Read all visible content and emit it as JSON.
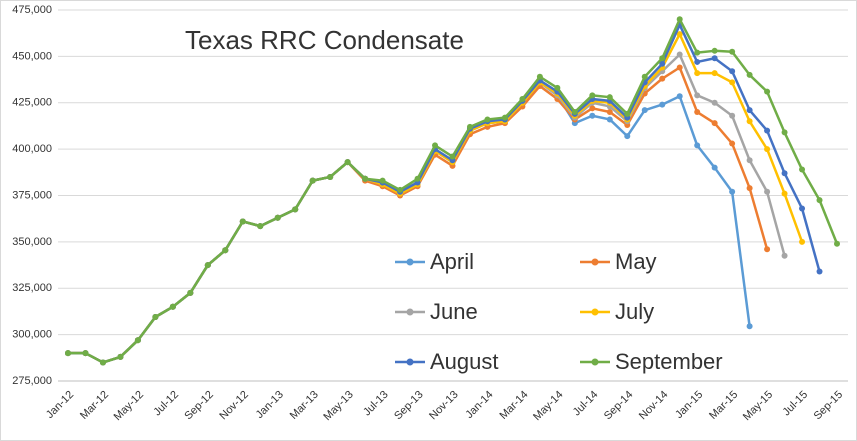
{
  "chart_data": {
    "type": "line",
    "title": "Texas RRC Condensate",
    "categories": [
      "Jan-12",
      null,
      "Mar-12",
      null,
      "May-12",
      null,
      "Jul-12",
      null,
      "Sep-12",
      null,
      "Nov-12",
      null,
      "Jan-13",
      null,
      "Mar-13",
      null,
      "May-13",
      null,
      "Jul-13",
      null,
      "Sep-13",
      null,
      "Nov-13",
      null,
      "Jan-14",
      null,
      "Mar-14",
      null,
      "May-14",
      null,
      "Jul-14",
      null,
      "Sep-14",
      null,
      "Nov-14",
      null,
      "Jan-15",
      null,
      "Mar-15",
      null,
      "May-15",
      null,
      "Jul-15",
      null,
      "Sep-15"
    ],
    "ylim": [
      275000,
      475000
    ],
    "yticks": [
      {
        "value": 275000,
        "label": "275,000"
      },
      {
        "value": 300000,
        "label": "300,000"
      },
      {
        "value": 325000,
        "label": "325,000"
      },
      {
        "value": 350000,
        "label": "350,000"
      },
      {
        "value": 375000,
        "label": "375,000"
      },
      {
        "value": 400000,
        "label": "400,000"
      },
      {
        "value": 425000,
        "label": "425,000"
      },
      {
        "value": 450000,
        "label": "450,000"
      },
      {
        "value": 475000,
        "label": "475,000"
      }
    ],
    "grid": true,
    "series": [
      {
        "name": "April",
        "color": "#5b9bd5",
        "values": [
          290000,
          290000,
          285000,
          288000,
          297000,
          309500,
          315000,
          322500,
          337500,
          345500,
          361000,
          358500,
          363000,
          367500,
          383000,
          385000,
          393000,
          384000,
          382000,
          377000,
          382000,
          399000,
          393000,
          410000,
          414000,
          415000,
          425000,
          436000,
          429000,
          414000,
          418000,
          416000,
          407000,
          421000,
          424000,
          428500,
          402000,
          390000,
          377000,
          304500,
          null,
          null,
          null,
          null,
          null
        ]
      },
      {
        "name": "May",
        "color": "#ed7d31",
        "values": [
          290000,
          290000,
          285000,
          288000,
          297000,
          309500,
          315000,
          322500,
          337500,
          345500,
          361000,
          358500,
          363000,
          367500,
          383000,
          385000,
          393000,
          383000,
          380000,
          375000,
          380000,
          397000,
          391000,
          408000,
          412000,
          414000,
          423000,
          434000,
          427000,
          416000,
          422000,
          420000,
          413000,
          430000,
          438000,
          444000,
          420000,
          414000,
          403000,
          379000,
          346000,
          null,
          null,
          null,
          null
        ]
      },
      {
        "name": "June",
        "color": "#a5a5a5",
        "values": [
          290000,
          290000,
          285000,
          288000,
          297000,
          309500,
          315000,
          322500,
          337500,
          345500,
          361000,
          358500,
          363000,
          367500,
          383000,
          385000,
          393000,
          384000,
          381000,
          376000,
          381000,
          399000,
          393000,
          410000,
          414000,
          415000,
          425000,
          436000,
          429000,
          417000,
          425000,
          423000,
          415000,
          433000,
          442000,
          451000,
          429000,
          425000,
          418000,
          394000,
          377000,
          342500,
          null,
          null,
          null
        ]
      },
      {
        "name": "July",
        "color": "#ffc000",
        "values": [
          290000,
          290000,
          285000,
          288000,
          297000,
          309500,
          315000,
          322500,
          337500,
          345500,
          361000,
          358500,
          363000,
          367500,
          383000,
          385000,
          393000,
          384000,
          381000,
          376000,
          381000,
          399000,
          393000,
          410000,
          414000,
          415000,
          425000,
          436000,
          430000,
          418000,
          426000,
          425000,
          416000,
          434000,
          444000,
          462000,
          441000,
          441000,
          436000,
          415000,
          400000,
          376000,
          350000,
          null,
          null
        ]
      },
      {
        "name": "August",
        "color": "#4472c4",
        "values": [
          290000,
          290000,
          285000,
          288000,
          297000,
          309500,
          315000,
          322500,
          337500,
          345500,
          361000,
          358500,
          363000,
          367500,
          383000,
          385000,
          393000,
          384000,
          382000,
          377000,
          382000,
          400000,
          394000,
          411000,
          415000,
          416000,
          426000,
          437000,
          431000,
          419000,
          427000,
          426000,
          417000,
          436000,
          446000,
          467000,
          447000,
          449000,
          442000,
          421000,
          410000,
          387000,
          368000,
          334000,
          null
        ]
      },
      {
        "name": "September",
        "color": "#70ad47",
        "values": [
          290000,
          290000,
          285000,
          288000,
          297000,
          309500,
          315000,
          322500,
          337500,
          345500,
          361000,
          358500,
          363000,
          367500,
          383000,
          385000,
          393000,
          384000,
          383000,
          378000,
          384000,
          402000,
          396000,
          412000,
          416000,
          417000,
          427000,
          439000,
          433000,
          420000,
          429000,
          428000,
          419000,
          439000,
          449000,
          470000,
          452000,
          453000,
          452500,
          440000,
          431000,
          409000,
          389000,
          372500,
          349000
        ]
      }
    ]
  }
}
